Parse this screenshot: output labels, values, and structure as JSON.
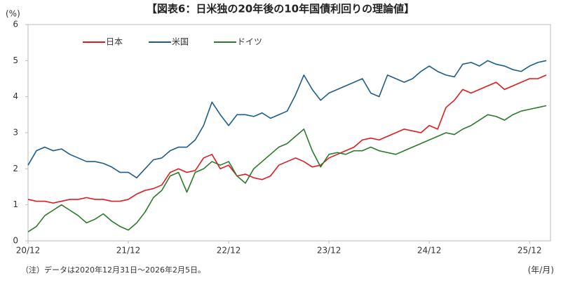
{
  "chart_data": {
    "type": "line",
    "title": "【図表6：日米独の20年後の10年国債利回りの理論値】",
    "y_unit_label": "(%)",
    "x_unit_label": "(年/月)",
    "note": "（注）データは2020年12月31日～2026年2月5日。",
    "x": [
      0,
      1,
      2,
      3,
      4,
      5,
      6,
      7,
      8,
      9,
      10,
      11,
      12,
      13,
      14,
      15,
      16,
      17,
      18,
      19,
      20,
      21,
      22,
      23,
      24,
      25,
      26,
      27,
      28,
      29,
      30,
      31,
      32,
      33,
      34,
      35,
      36,
      37,
      38,
      39,
      40,
      41,
      42,
      43,
      44,
      45,
      46,
      47,
      48,
      49,
      50,
      51,
      52,
      53,
      54,
      55,
      56,
      57,
      58,
      59,
      60,
      61,
      62
    ],
    "xlim": [
      0,
      62.5
    ],
    "xticks": [
      {
        "value": 0,
        "label": "20/12"
      },
      {
        "value": 12,
        "label": "21/12"
      },
      {
        "value": 24,
        "label": "22/12"
      },
      {
        "value": 36,
        "label": "23/12"
      },
      {
        "value": 48,
        "label": "24/12"
      },
      {
        "value": 60,
        "label": "25/12"
      }
    ],
    "ylim": [
      0,
      6
    ],
    "yticks": [
      0,
      1,
      2,
      3,
      4,
      5,
      6
    ],
    "grid": false,
    "legend": "top",
    "series": [
      {
        "name": "日本",
        "color": "#e31a1c",
        "values": [
          1.15,
          1.1,
          1.1,
          1.05,
          1.1,
          1.15,
          1.15,
          1.2,
          1.15,
          1.15,
          1.1,
          1.1,
          1.15,
          1.3,
          1.4,
          1.45,
          1.55,
          1.9,
          2.0,
          1.9,
          1.95,
          2.3,
          2.4,
          2.0,
          2.1,
          1.8,
          1.85,
          1.75,
          1.7,
          1.8,
          2.1,
          2.2,
          2.3,
          2.2,
          2.05,
          2.1,
          2.3,
          2.4,
          2.5,
          2.6,
          2.8,
          2.85,
          2.8,
          2.9,
          3.0,
          3.1,
          3.05,
          3.0,
          3.2,
          3.1,
          3.7,
          3.9,
          4.2,
          4.1,
          4.2,
          4.3,
          4.4,
          4.2,
          4.3,
          4.4,
          4.5,
          4.5,
          4.6
        ]
      },
      {
        "name": "米国",
        "color": "#1c5d8a",
        "values": [
          2.1,
          2.5,
          2.6,
          2.5,
          2.55,
          2.4,
          2.3,
          2.2,
          2.2,
          2.15,
          2.05,
          1.9,
          1.9,
          1.75,
          2.0,
          2.25,
          2.3,
          2.5,
          2.6,
          2.6,
          2.8,
          3.2,
          3.85,
          3.5,
          3.2,
          3.5,
          3.5,
          3.45,
          3.55,
          3.4,
          3.5,
          3.6,
          4.05,
          4.6,
          4.2,
          3.9,
          4.1,
          4.2,
          4.3,
          4.4,
          4.5,
          4.1,
          4.0,
          4.6,
          4.5,
          4.4,
          4.5,
          4.7,
          4.85,
          4.7,
          4.6,
          4.55,
          4.9,
          4.95,
          4.85,
          5.0,
          4.9,
          4.85,
          4.75,
          4.7,
          4.85,
          4.95,
          5.0
        ]
      },
      {
        "name": "ドイツ",
        "color": "#2b7a2b",
        "values": [
          0.25,
          0.4,
          0.7,
          0.85,
          1.0,
          0.85,
          0.7,
          0.5,
          0.6,
          0.75,
          0.55,
          0.4,
          0.3,
          0.5,
          0.8,
          1.2,
          1.4,
          1.8,
          1.9,
          1.35,
          1.9,
          2.0,
          2.2,
          2.1,
          2.2,
          1.8,
          1.6,
          2.0,
          2.2,
          2.4,
          2.6,
          2.7,
          2.9,
          3.1,
          2.5,
          2.05,
          2.4,
          2.45,
          2.4,
          2.5,
          2.5,
          2.6,
          2.5,
          2.45,
          2.4,
          2.5,
          2.6,
          2.7,
          2.8,
          2.9,
          3.0,
          2.95,
          3.1,
          3.2,
          3.35,
          3.5,
          3.45,
          3.35,
          3.5,
          3.6,
          3.65,
          3.7,
          3.75
        ]
      }
    ]
  }
}
